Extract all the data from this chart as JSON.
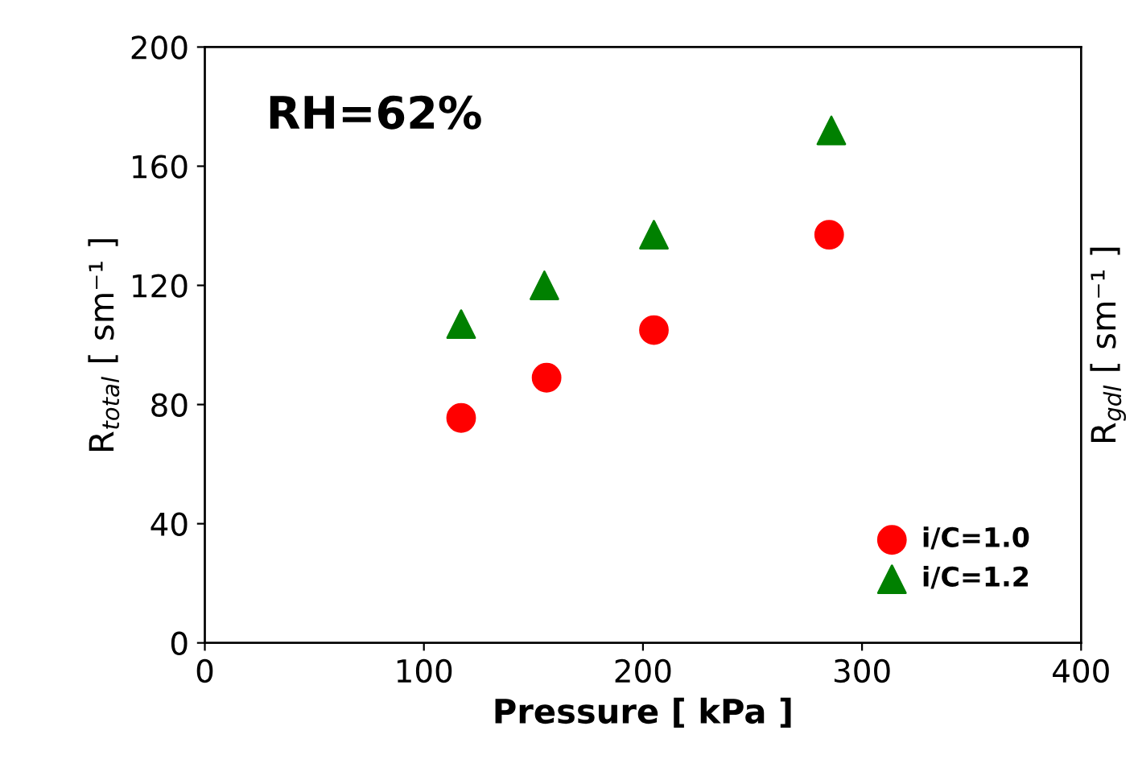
{
  "chart_data": {
    "type": "scatter",
    "xlabel": "Pressure [ kPa ]",
    "ylabel": "R$_{total}$ [ sm⁻¹ ]",
    "y2label": "R$_{gdl}$ [ sm⁻¹ ]",
    "annotations": [
      "RH=62%"
    ],
    "x": [
      117,
      156,
      205,
      285
    ],
    "series": [
      {
        "name": "i/C=1.0",
        "color": "#ff0000",
        "marker": "circle",
        "values": [
          75.5,
          89,
          105,
          137
        ]
      },
      {
        "name": "i/C=1.2",
        "color": "#008000",
        "marker": "triangle",
        "x": [
          117,
          155,
          205,
          286
        ],
        "values": [
          107,
          120,
          137,
          172
        ]
      }
    ],
    "xlim": [
      0,
      400
    ],
    "xticks": [
      0,
      100,
      200,
      300,
      400
    ],
    "ylim": [
      0,
      200
    ],
    "yticks": [
      0,
      40,
      80,
      120,
      160,
      200
    ],
    "grid": false,
    "legend": "bottom right"
  }
}
